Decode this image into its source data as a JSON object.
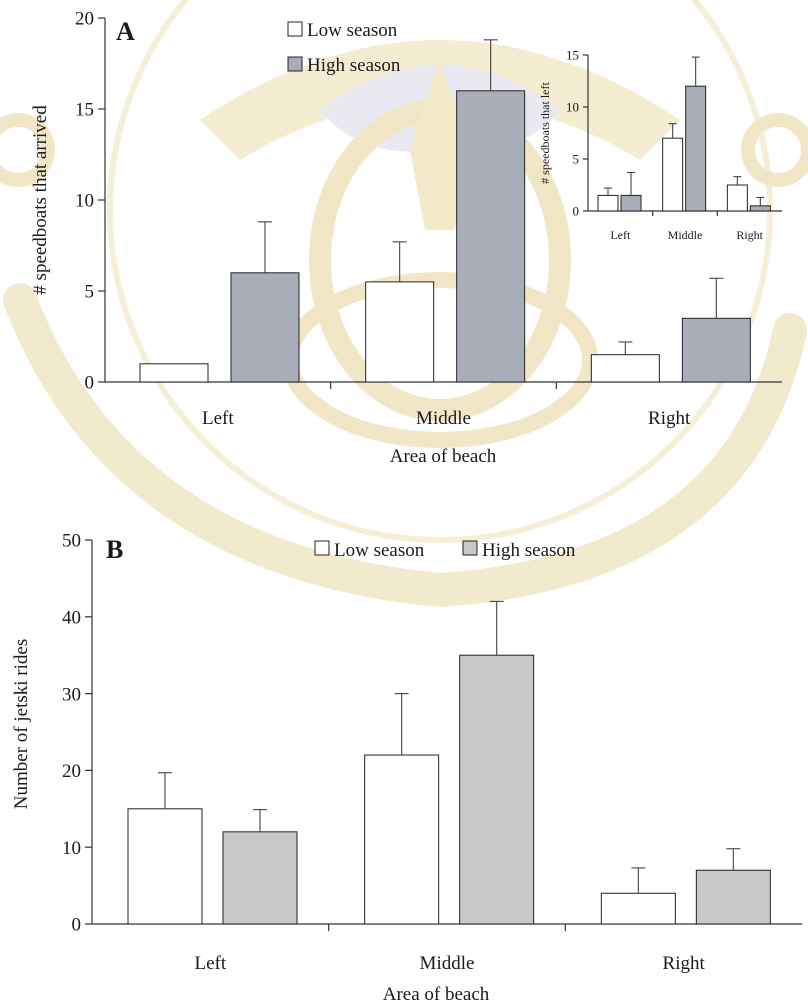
{
  "colors": {
    "low_season": "#ffffff",
    "high_season_a": "#a9adb8",
    "high_season_b": "#c8c8c8",
    "watermark_gold": "#e9d9a4",
    "watermark_blue": "#c9cde0"
  },
  "chart_data": [
    {
      "id": "A",
      "type": "bar",
      "panel_label": "A",
      "xlabel": "Area of beach",
      "ylabel": "# speedboats that arrived",
      "categories": [
        "Left",
        "Middle",
        "Right"
      ],
      "ylim": [
        0,
        20
      ],
      "yticks": [
        "0",
        "5",
        "10",
        "15",
        "20"
      ],
      "series": [
        {
          "name": "Low season",
          "values": [
            1,
            5.5,
            1.5
          ],
          "errors": [
            0,
            2.2,
            0.7
          ]
        },
        {
          "name": "High season",
          "values": [
            6,
            16,
            3.5
          ],
          "errors": [
            2.8,
            2.8,
            2.2
          ]
        }
      ],
      "legend": "top-center",
      "grid": false
    },
    {
      "id": "A-inset",
      "type": "bar",
      "xlabel": "",
      "ylabel": "# speedboats that left",
      "categories": [
        "Left",
        "Middle",
        "Right"
      ],
      "ylim": [
        0,
        15
      ],
      "yticks": [
        "0",
        "5",
        "10",
        "15"
      ],
      "series": [
        {
          "name": "Low season",
          "values": [
            1.5,
            7,
            2.5
          ],
          "errors": [
            0.7,
            1.4,
            0.8
          ]
        },
        {
          "name": "High season",
          "values": [
            1.5,
            12,
            0.5
          ],
          "errors": [
            2.2,
            2.8,
            0.8
          ]
        }
      ],
      "grid": false
    },
    {
      "id": "B",
      "type": "bar",
      "panel_label": "B",
      "xlabel": "Area of beach",
      "ylabel": "Number of jetski rides",
      "categories": [
        "Left",
        "Middle",
        "Right"
      ],
      "ylim": [
        0,
        50
      ],
      "yticks": [
        "0",
        "10",
        "20",
        "30",
        "40",
        "50"
      ],
      "series": [
        {
          "name": "Low season",
          "values": [
            15,
            22,
            4
          ],
          "errors": [
            4.7,
            8,
            3.3
          ]
        },
        {
          "name": "High season",
          "values": [
            12,
            35,
            7
          ],
          "errors": [
            2.9,
            7,
            2.8
          ]
        }
      ],
      "legend": "top-center",
      "grid": false
    }
  ]
}
